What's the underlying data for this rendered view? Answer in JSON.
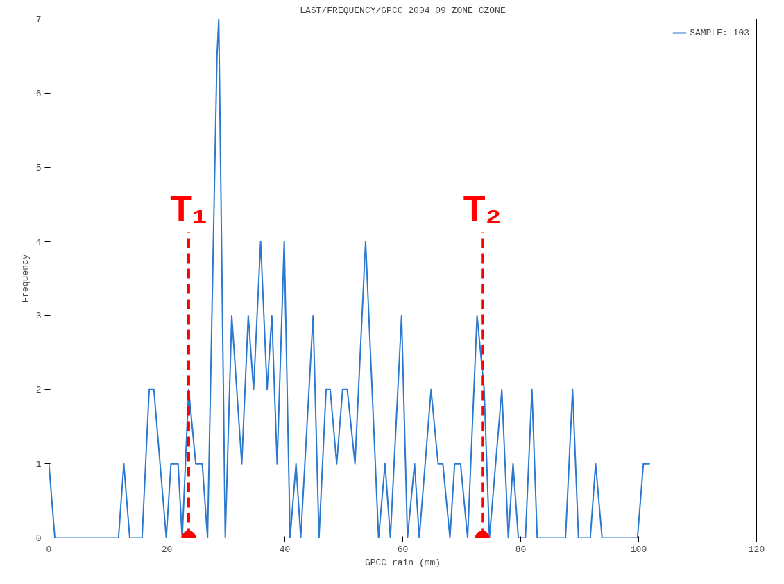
{
  "chart_data": {
    "type": "line",
    "title": "LAST/FREQUENCY/GPCC 2004 09 ZONE CZONE",
    "xlabel": "GPCC rain (mm)",
    "ylabel": "Frequency",
    "xlim": [
      0,
      120
    ],
    "ylim": [
      0,
      7
    ],
    "xticks": [
      0,
      20,
      40,
      60,
      80,
      100,
      120
    ],
    "yticks": [
      0,
      1,
      2,
      3,
      4,
      5,
      6,
      7
    ],
    "grid": false,
    "legend": "top right",
    "line_style": "solid",
    "series": [
      {
        "name": "SAMPLE: 103",
        "color": "#2a78d0",
        "marker": "none",
        "x": [
          0,
          1,
          11.8,
          12.7,
          13.7,
          15.8,
          17,
          17.8,
          19.9,
          20.7,
          21.9,
          22.6,
          23.7,
          24.9,
          26,
          26.9,
          28.5,
          28.8,
          29.9,
          31,
          32.7,
          33.8,
          34.7,
          35.9,
          37,
          37.8,
          38.7,
          39.9,
          40.9,
          41.9,
          42.7,
          44.8,
          45.8,
          47,
          47.7,
          48.8,
          49.8,
          50.6,
          51.9,
          53.7,
          55.9,
          57,
          57.9,
          59.8,
          60.8,
          62,
          62.8,
          64.8,
          66,
          66.8,
          68,
          68.8,
          69.8,
          71,
          72.6,
          73.8,
          74.7,
          76.8,
          77.9,
          78.7,
          79.6,
          80.8,
          81.9,
          82.8,
          87.6,
          88.8,
          89.8,
          91.8,
          92.7,
          93.8,
          99.8,
          100.8,
          101.9
        ],
        "values": [
          1,
          0,
          0,
          1,
          0,
          0,
          2,
          2,
          0,
          1,
          1,
          0,
          2,
          1,
          1,
          0,
          6.5,
          7,
          0,
          3,
          1,
          3,
          2,
          4,
          2,
          3,
          1,
          4,
          0,
          1,
          0,
          3,
          0,
          2,
          2,
          1,
          2,
          2,
          1,
          4,
          0,
          1,
          0,
          3,
          0,
          1,
          0,
          2,
          1,
          1,
          0,
          1,
          1,
          0,
          3,
          2,
          0,
          2,
          0,
          1,
          0,
          0,
          2,
          0,
          0,
          2,
          0,
          0,
          1,
          0,
          0,
          1,
          1
        ]
      },
      {
        "type": "scatter",
        "color": "#ff0000",
        "marker": "circle",
        "x": [
          23.7,
          73.5
        ],
        "values": [
          0,
          0
        ]
      }
    ],
    "ref_lines": [
      {
        "axis": "x",
        "value": 23.7,
        "label": "T₁",
        "color": "#ff0000",
        "line_style": "dashed"
      },
      {
        "axis": "x",
        "value": 73.5,
        "label": "T₂",
        "color": "#ff0000",
        "line_style": "dashed"
      }
    ]
  }
}
